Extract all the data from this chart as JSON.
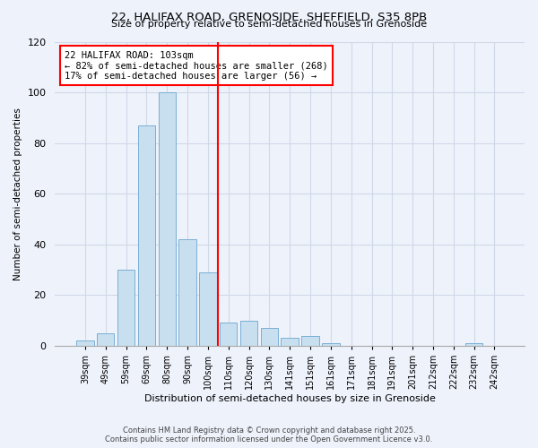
{
  "title1": "22, HALIFAX ROAD, GRENOSIDE, SHEFFIELD, S35 8PB",
  "title2": "Size of property relative to semi-detached houses in Grenoside",
  "xlabel": "Distribution of semi-detached houses by size in Grenoside",
  "ylabel": "Number of semi-detached properties",
  "bin_labels": [
    "39sqm",
    "49sqm",
    "59sqm",
    "69sqm",
    "80sqm",
    "90sqm",
    "100sqm",
    "110sqm",
    "120sqm",
    "130sqm",
    "141sqm",
    "151sqm",
    "161sqm",
    "171sqm",
    "181sqm",
    "191sqm",
    "201sqm",
    "212sqm",
    "222sqm",
    "232sqm",
    "242sqm"
  ],
  "bar_values": [
    2,
    5,
    30,
    87,
    100,
    42,
    29,
    9,
    10,
    7,
    3,
    4,
    1,
    0,
    0,
    0,
    0,
    0,
    0,
    1,
    0
  ],
  "bar_color": "#c8dff0",
  "bar_edge_color": "#7bafd4",
  "vline_color": "red",
  "annotation_title": "22 HALIFAX ROAD: 103sqm",
  "annotation_line1": "← 82% of semi-detached houses are smaller (268)",
  "annotation_line2": "17% of semi-detached houses are larger (56) →",
  "box_color": "white",
  "box_edge_color": "red",
  "ylim": [
    0,
    120
  ],
  "yticks": [
    0,
    20,
    40,
    60,
    80,
    100,
    120
  ],
  "footer1": "Contains HM Land Registry data © Crown copyright and database right 2025.",
  "footer2": "Contains public sector information licensed under the Open Government Licence v3.0.",
  "background_color": "#eef2fb",
  "grid_color": "#d0d8e8"
}
